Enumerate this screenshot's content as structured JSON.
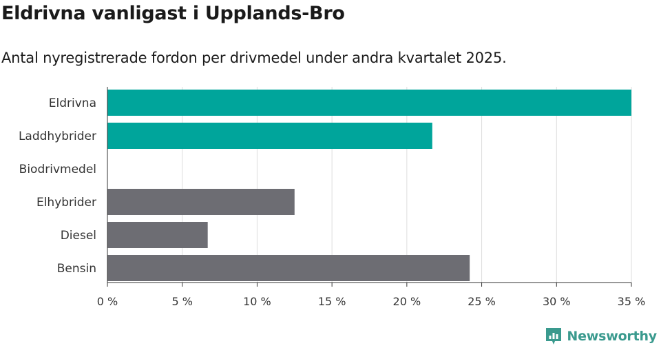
{
  "header": {
    "title": "Eldrivna vanligast i Upplands-Bro",
    "subtitle": "Antal nyregistrerade fordon per drivmedel under andra kvartalet 2025."
  },
  "brand": {
    "name": "Newsworthy",
    "icon": "newsworthy-logo-icon",
    "color": "#3a9a8e"
  },
  "chart_data": {
    "type": "bar",
    "orientation": "horizontal",
    "categories": [
      "Eldrivna",
      "Laddhybrider",
      "Biodrivmedel",
      "Elhybrider",
      "Diesel",
      "Bensin"
    ],
    "values": [
      35.0,
      21.7,
      0,
      12.5,
      6.7,
      24.2
    ],
    "bar_colors": [
      "#00a59b",
      "#00a59b",
      "#00a59b",
      "#6d6d73",
      "#6d6d73",
      "#6d6d73"
    ],
    "xlim": [
      0,
      35
    ],
    "xticks": [
      0,
      5,
      10,
      15,
      20,
      25,
      30,
      35
    ],
    "xtick_labels": [
      "0 %",
      "5 %",
      "10 %",
      "15 %",
      "20 %",
      "25 %",
      "30 %",
      "35 %"
    ],
    "grid": true,
    "xlabel": "",
    "ylabel": ""
  }
}
